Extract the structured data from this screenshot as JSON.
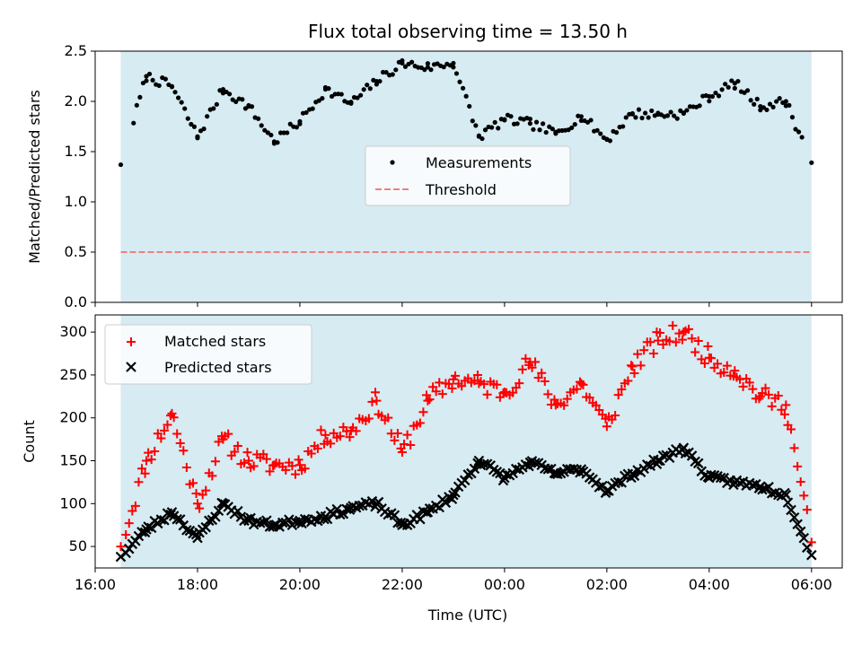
{
  "figure": {
    "title": "Flux total observing time = 13.50 h",
    "xlabel": "Time (UTC)"
  },
  "chart_data": [
    {
      "type": "scatter",
      "ylabel": "Matched/Predicted stars",
      "ylim": [
        0,
        2.5
      ],
      "yticks": [
        "0.0",
        "0.5",
        "1.0",
        "1.5",
        "2.0",
        "2.5"
      ],
      "xticks": [
        "16:00",
        "18:00",
        "20:00",
        "22:00",
        "00:00",
        "02:00",
        "04:00",
        "06:00"
      ],
      "xlim_hours": [
        16.0,
        30.6
      ],
      "shade_range_hours": [
        16.5,
        30.0
      ],
      "legend": {
        "position": "center",
        "entries": [
          "Measurements",
          "Threshold"
        ]
      },
      "threshold": 0.5,
      "series": [
        {
          "name": "Measurements",
          "color": "#000000",
          "x": [
            "16:30",
            "17:00",
            "17:30",
            "18:00",
            "18:30",
            "19:00",
            "19:30",
            "20:00",
            "20:30",
            "21:00",
            "21:30",
            "22:00",
            "22:30",
            "23:00",
            "23:30",
            "00:00",
            "00:30",
            "01:00",
            "01:30",
            "02:00",
            "02:30",
            "03:00",
            "03:30",
            "04:00",
            "04:30",
            "05:00",
            "05:30",
            "06:00"
          ],
          "y": [
            1.37,
            2.25,
            2.15,
            1.65,
            2.12,
            1.95,
            1.6,
            1.8,
            2.12,
            1.98,
            2.2,
            2.38,
            2.34,
            2.38,
            1.65,
            1.82,
            1.78,
            1.68,
            1.85,
            1.62,
            1.88,
            1.87,
            1.88,
            2.05,
            2.18,
            1.95,
            2.0,
            1.39
          ]
        }
      ]
    },
    {
      "type": "scatter",
      "ylabel": "Count",
      "ylim": [
        25,
        320
      ],
      "yticks": [
        "50",
        "100",
        "150",
        "200",
        "250",
        "300"
      ],
      "xticks": [
        "16:00",
        "18:00",
        "20:00",
        "22:00",
        "00:00",
        "02:00",
        "04:00",
        "06:00"
      ],
      "xlim_hours": [
        16.0,
        30.6
      ],
      "shade_range_hours": [
        16.5,
        30.0
      ],
      "legend": {
        "position": "upper left",
        "entries": [
          "Matched stars",
          "Predicted stars"
        ]
      },
      "series": [
        {
          "name": "Matched stars",
          "color": "#ff0000",
          "x": [
            "16:30",
            "17:00",
            "17:30",
            "18:00",
            "18:30",
            "19:00",
            "19:30",
            "20:00",
            "20:30",
            "21:00",
            "21:30",
            "22:00",
            "22:30",
            "23:00",
            "23:30",
            "00:00",
            "00:30",
            "01:00",
            "01:30",
            "02:00",
            "02:30",
            "03:00",
            "03:30",
            "04:00",
            "04:30",
            "05:00",
            "05:30",
            "06:00"
          ],
          "y": [
            50,
            150,
            205,
            100,
            175,
            150,
            145,
            145,
            180,
            185,
            220,
            160,
            220,
            245,
            240,
            230,
            265,
            215,
            240,
            190,
            260,
            290,
            300,
            270,
            255,
            225,
            215,
            55
          ]
        },
        {
          "name": "Predicted stars",
          "color": "#000000",
          "x": [
            "16:30",
            "17:00",
            "17:30",
            "18:00",
            "18:30",
            "19:00",
            "19:30",
            "20:00",
            "20:30",
            "21:00",
            "21:30",
            "22:00",
            "22:30",
            "23:00",
            "23:30",
            "00:00",
            "00:30",
            "01:00",
            "01:30",
            "02:00",
            "02:30",
            "03:00",
            "03:30",
            "04:00",
            "04:30",
            "05:00",
            "05:30",
            "06:00"
          ],
          "y": [
            38,
            70,
            90,
            60,
            100,
            80,
            75,
            80,
            85,
            95,
            100,
            75,
            90,
            110,
            150,
            130,
            148,
            135,
            140,
            115,
            135,
            150,
            165,
            130,
            125,
            120,
            110,
            40
          ]
        }
      ]
    }
  ]
}
